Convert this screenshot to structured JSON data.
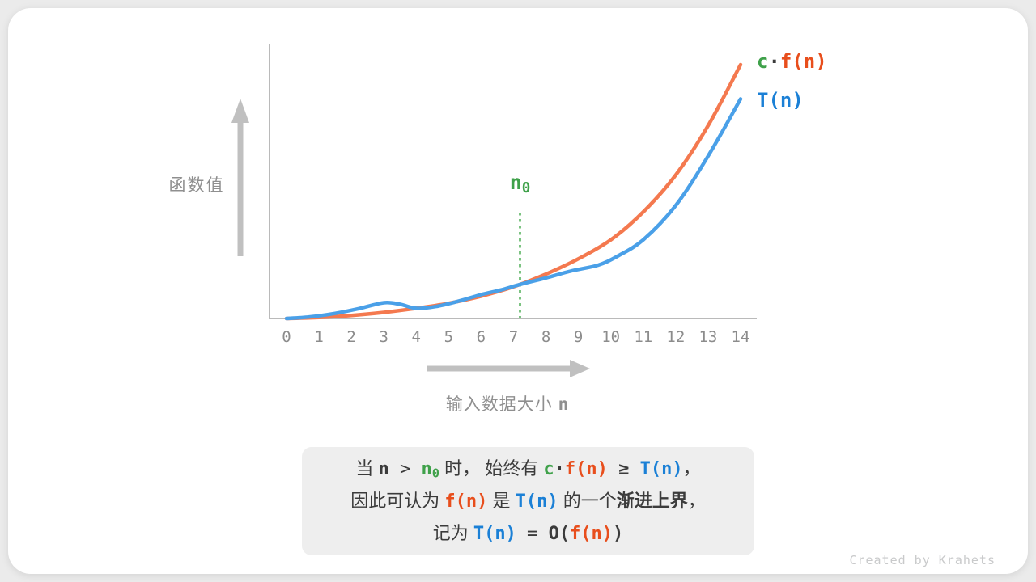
{
  "page": {
    "background": "#EBEBEB",
    "card_background": "#FFFFFF"
  },
  "colors": {
    "orange_curve": "#F4794F",
    "orange_text": "#E84E1C",
    "blue_curve": "#4AA0E8",
    "blue_text": "#1B80D6",
    "green_text": "#3FA14A",
    "green_dotted_line": "#7CC382",
    "axis_line": "#BABABA",
    "arrow": "#C0C0C0",
    "tick_text": "#8C8C8C",
    "axis_label_text": "#8F8F8F",
    "dark_text": "#3B3B3B",
    "caption_background": "#EEEEEE",
    "credit_text": "#C9CACB"
  },
  "chart_data": {
    "type": "line",
    "title": "",
    "xlabel": "输入数据大小 n",
    "ylabel": "函数值",
    "x_ticks": [
      "0",
      "1",
      "2",
      "3",
      "4",
      "5",
      "6",
      "7",
      "8",
      "9",
      "10",
      "11",
      "12",
      "13",
      "14"
    ],
    "y_ticks": [],
    "xlim": [
      0,
      14.5
    ],
    "ylim": [
      0,
      1.05
    ],
    "grid": false,
    "legend_position": "right-of-curve-ends",
    "annotations": [
      {
        "label": "n0",
        "x": 7.2,
        "type": "vertical-dotted-line",
        "color": "#7CC382"
      }
    ],
    "crossing_point": {
      "x": 7.2,
      "y": 0.134
    },
    "series": [
      {
        "name": "c·f(n)",
        "color": "#F4794F",
        "x": [
          0,
          1,
          2,
          3,
          4,
          5,
          6,
          7,
          8,
          9,
          10,
          11,
          12,
          13,
          14
        ],
        "y": [
          0,
          0.004,
          0.012,
          0.024,
          0.04,
          0.06,
          0.088,
          0.125,
          0.175,
          0.235,
          0.31,
          0.42,
          0.565,
          0.76,
          1.0
        ]
      },
      {
        "name": "T(n)",
        "color": "#4AA0E8",
        "x": [
          0,
          0.7,
          1.5,
          2.2,
          3.0,
          3.5,
          4.0,
          4.6,
          5.3,
          6.0,
          6.6,
          7.2,
          8.0,
          8.8,
          9.6,
          10.2,
          11,
          12,
          13,
          14
        ],
        "y": [
          0,
          0.006,
          0.02,
          0.038,
          0.062,
          0.056,
          0.04,
          0.047,
          0.068,
          0.094,
          0.112,
          0.134,
          0.16,
          0.188,
          0.21,
          0.245,
          0.31,
          0.445,
          0.64,
          0.865
        ]
      }
    ]
  },
  "labels": {
    "y_axis": "函数值",
    "x_axis": [
      {
        "t": "输入数据大小 ",
        "c": "gray"
      },
      {
        "t": "n",
        "c": "gray",
        "m": 1,
        "b": 1
      }
    ],
    "n0_label": [
      {
        "t": "n",
        "c": "green",
        "m": 1,
        "b": 1
      },
      {
        "t": "0",
        "c": "green",
        "m": 1,
        "b": 1,
        "sub": 1
      }
    ]
  },
  "legend": {
    "cf": [
      {
        "t": "c",
        "c": "green",
        "m": 1,
        "b": 1
      },
      {
        "t": "·",
        "c": "dark",
        "m": 1,
        "b": 1
      },
      {
        "t": "f(n)",
        "c": "orange",
        "m": 1,
        "b": 1
      }
    ],
    "tn": [
      {
        "t": "T(n)",
        "c": "blue",
        "m": 1,
        "b": 1
      }
    ]
  },
  "caption": {
    "lines": [
      [
        {
          "t": "当 ",
          "c": "dark"
        },
        {
          "t": "n",
          "c": "dark",
          "m": 1,
          "b": 1
        },
        {
          "t": " > ",
          "c": "dark",
          "m": 1
        },
        {
          "t": "n",
          "c": "green",
          "m": 1,
          "b": 1
        },
        {
          "t": "0",
          "c": "green",
          "m": 1,
          "b": 1,
          "sub": 1
        },
        {
          "t": " 时， 始终有 ",
          "c": "dark"
        },
        {
          "t": "c",
          "c": "green",
          "m": 1,
          "b": 1
        },
        {
          "t": "·",
          "c": "dark",
          "m": 1,
          "b": 1
        },
        {
          "t": "f(n)",
          "c": "orange",
          "m": 1,
          "b": 1
        },
        {
          "t": " ≥ ",
          "c": "dark",
          "m": 1,
          "b": 1
        },
        {
          "t": "T(n)",
          "c": "blue",
          "m": 1,
          "b": 1
        },
        {
          "t": "，",
          "c": "dark"
        }
      ],
      [
        {
          "t": "因此可认为 ",
          "c": "dark"
        },
        {
          "t": "f(n)",
          "c": "orange",
          "m": 1,
          "b": 1
        },
        {
          "t": " 是 ",
          "c": "dark"
        },
        {
          "t": "T(n)",
          "c": "blue",
          "m": 1,
          "b": 1
        },
        {
          "t": " 的一个",
          "c": "dark"
        },
        {
          "t": "渐进上界",
          "c": "dark",
          "b": 1
        },
        {
          "t": "，",
          "c": "dark"
        }
      ],
      [
        {
          "t": "记为 ",
          "c": "dark"
        },
        {
          "t": "T(n)",
          "c": "blue",
          "m": 1,
          "b": 1
        },
        {
          "t": " = ",
          "c": "dark",
          "m": 1
        },
        {
          "t": "O(",
          "c": "dark",
          "m": 1,
          "b": 1
        },
        {
          "t": "f(n)",
          "c": "orange",
          "m": 1,
          "b": 1
        },
        {
          "t": ")",
          "c": "dark",
          "m": 1,
          "b": 1
        }
      ]
    ]
  },
  "credit": "Created by Krahets"
}
